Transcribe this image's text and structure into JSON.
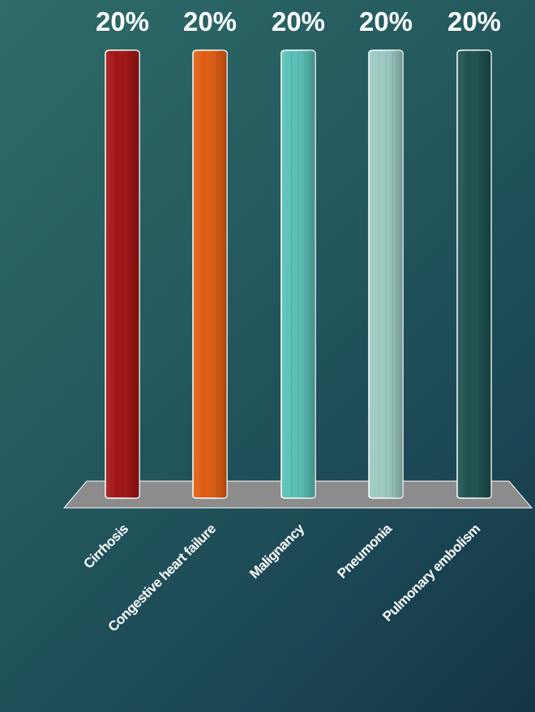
{
  "chart_data": {
    "type": "bar",
    "categories": [
      "Cirrhosis",
      "Congestive heart failure",
      "Malignancy",
      "Pneumonia",
      "Pulmonary embolism"
    ],
    "values": [
      20,
      20,
      20,
      20,
      20
    ],
    "value_labels": [
      "20%",
      "20%",
      "20%",
      "20%",
      "20%"
    ],
    "colors": [
      "#a31515",
      "#e05d12",
      "#58bfb5",
      "#9cc9c2",
      "#1e5250"
    ],
    "ylim": [
      0,
      20
    ],
    "grid": false,
    "legend": "none",
    "title": "",
    "xlabel": "",
    "ylabel": ""
  },
  "colors": {
    "floor": "#8c8c8c",
    "label_text": "#ffffff"
  }
}
